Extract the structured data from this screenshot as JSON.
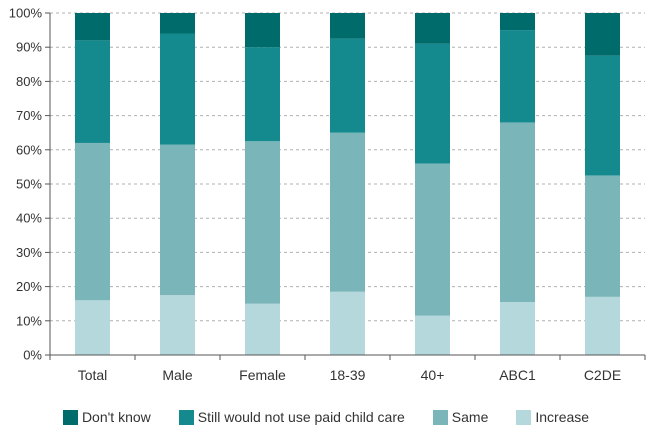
{
  "chart_data": {
    "type": "bar",
    "stacked": true,
    "categories": [
      "Total",
      "Male",
      "Female",
      "18-39",
      "40+",
      "ABC1",
      "C2DE"
    ],
    "series": [
      {
        "name": "Increase",
        "color": "#b5d8dc",
        "values": [
          16,
          17.5,
          15,
          18.5,
          11.5,
          15.5,
          17
        ]
      },
      {
        "name": "Same",
        "color": "#7ab5b9",
        "values": [
          46,
          44,
          47.5,
          46.5,
          44.5,
          52.5,
          35.5
        ]
      },
      {
        "name": "Still would not use paid child care",
        "color": "#158a8e",
        "values": [
          30,
          32.5,
          27.5,
          27.5,
          35,
          27,
          35
        ]
      },
      {
        "name": "Don't know",
        "color": "#006b6b",
        "values": [
          8,
          6,
          10,
          7.5,
          9,
          5,
          12.5
        ]
      }
    ],
    "legend_order": [
      "Don't know",
      "Still would not use paid child care",
      "Same",
      "Increase"
    ],
    "ylim": [
      0,
      100
    ],
    "yticks": [
      "0%",
      "10%",
      "20%",
      "30%",
      "40%",
      "50%",
      "60%",
      "70%",
      "80%",
      "90%",
      "100%"
    ],
    "grid": true,
    "legend_position": "bottom",
    "title": "",
    "xlabel": "",
    "ylabel": ""
  }
}
